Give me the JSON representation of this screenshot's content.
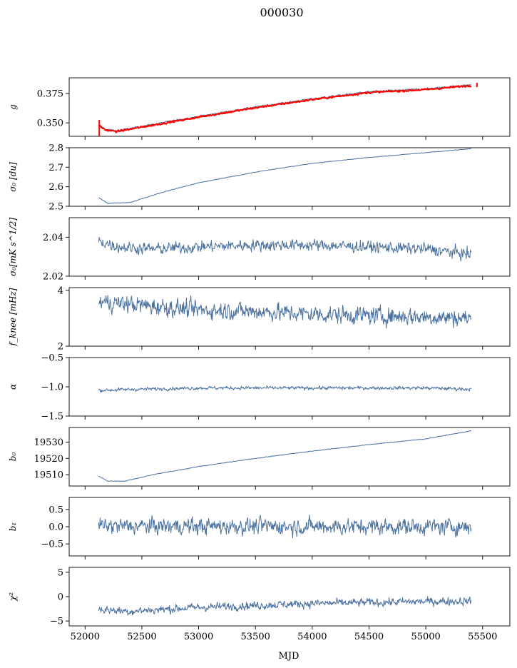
{
  "figure": {
    "title": "000030",
    "xlabel": "MJD"
  },
  "chart_data": {
    "type": "line",
    "title": "000030",
    "xlabel": "MJD",
    "x_ticks": [
      52000,
      52500,
      53000,
      53500,
      54000,
      54500,
      55000,
      55500
    ],
    "xlim": [
      51860,
      55740
    ],
    "panels": [
      {
        "ylabel": "g",
        "ylim": [
          0.3385,
          0.3885
        ],
        "y_ticks": [
          {
            "v": 0.35,
            "label": "0.350"
          },
          {
            "v": 0.375,
            "label": "0.375"
          }
        ],
        "shape": {
          "x": [
            52120,
            52180,
            52280,
            52500,
            53000,
            53500,
            54000,
            54500,
            55000,
            55400
          ],
          "y": [
            0.3485,
            0.3445,
            0.3432,
            0.347,
            0.3555,
            0.3635,
            0.3705,
            0.3765,
            0.379,
            0.3825
          ]
        },
        "noise": 0.0008,
        "series": [
          {
            "color": "#4c72a0",
            "width": 1.0,
            "offset": 0.0
          },
          {
            "color": "#ff0000",
            "width": 2.0,
            "offset": -0.0006,
            "spike_start": true,
            "spike_end": true
          }
        ]
      },
      {
        "ylabel": "σ₀ [du]",
        "ylim": [
          2.5,
          2.8
        ],
        "y_ticks": [
          {
            "v": 2.5,
            "label": "2.5"
          },
          {
            "v": 2.6,
            "label": "2.6"
          },
          {
            "v": 2.7,
            "label": "2.7"
          },
          {
            "v": 2.8,
            "label": "2.8"
          }
        ],
        "shape": {
          "x": [
            52120,
            52200,
            52400,
            52700,
            53000,
            53500,
            54000,
            54500,
            55000,
            55400
          ],
          "y": [
            2.545,
            2.515,
            2.52,
            2.575,
            2.62,
            2.675,
            2.72,
            2.75,
            2.775,
            2.795
          ]
        },
        "noise": 0.0015,
        "series": [
          {
            "color": "#4c72a0",
            "width": 1.0,
            "offset": 0.0
          }
        ]
      },
      {
        "ylabel": "σ₀[mK s^1/2]",
        "ylim": [
          2.02,
          2.05
        ],
        "y_ticks": [
          {
            "v": 2.02,
            "label": "2.02"
          },
          {
            "v": 2.04,
            "label": "2.04"
          }
        ],
        "shape": {
          "x": [
            52120,
            52300,
            52600,
            53000,
            53500,
            54000,
            54500,
            55000,
            55400
          ],
          "y": [
            2.038,
            2.035,
            2.034,
            2.035,
            2.036,
            2.036,
            2.035,
            2.034,
            2.031
          ]
        },
        "noise": 0.003,
        "series": [
          {
            "color": "#4c72a0",
            "width": 1.0,
            "offset": 0.0
          }
        ]
      },
      {
        "ylabel": "f_knee [mHz]",
        "ylim": [
          2.0,
          4.1
        ],
        "y_ticks": [
          {
            "v": 2,
            "label": "2"
          },
          {
            "v": 4,
            "label": "4"
          }
        ],
        "shape": {
          "x": [
            52120,
            52400,
            53000,
            53500,
            54000,
            54500,
            55000,
            55400
          ],
          "y": [
            3.6,
            3.5,
            3.3,
            3.25,
            3.15,
            3.1,
            3.05,
            3.0
          ]
        },
        "noise": 0.32,
        "series": [
          {
            "color": "#4c72a0",
            "width": 1.0,
            "offset": 0.0
          }
        ]
      },
      {
        "ylabel": "α",
        "ylim": [
          -1.5,
          -0.5
        ],
        "y_ticks": [
          {
            "v": -1.5,
            "label": "−1.5"
          },
          {
            "v": -1.0,
            "label": "−1.0"
          },
          {
            "v": -0.5,
            "label": "−0.5"
          }
        ],
        "shape": {
          "x": [
            52120,
            52500,
            53000,
            54000,
            55000,
            55400
          ],
          "y": [
            -1.06,
            -1.04,
            -1.02,
            -1.02,
            -1.02,
            -1.04
          ]
        },
        "noise": 0.03,
        "series": [
          {
            "color": "#4c72a0",
            "width": 1.0,
            "offset": 0.0
          }
        ]
      },
      {
        "ylabel": "b₀",
        "ylim": [
          19503,
          19539
        ],
        "y_ticks": [
          {
            "v": 19510,
            "label": "19510"
          },
          {
            "v": 19520,
            "label": "19520"
          },
          {
            "v": 19530,
            "label": "19530"
          }
        ],
        "shape": {
          "x": [
            52120,
            52200,
            52350,
            52600,
            53000,
            53500,
            54000,
            54500,
            55000,
            55400
          ],
          "y": [
            19509,
            19506,
            19506,
            19510,
            19515,
            19520,
            19524.5,
            19528.5,
            19532,
            19537
          ]
        },
        "noise": 0.2,
        "series": [
          {
            "color": "#4c72a0",
            "width": 1.0,
            "offset": 0.0
          }
        ]
      },
      {
        "ylabel": "b₁",
        "ylim": [
          -0.85,
          0.85
        ],
        "y_ticks": [
          {
            "v": -0.5,
            "label": "−0.5"
          },
          {
            "v": 0.0,
            "label": "0.0"
          },
          {
            "v": 0.5,
            "label": "0.5"
          }
        ],
        "shape": {
          "x": [
            52120,
            55400
          ],
          "y": [
            0.02,
            0.0
          ]
        },
        "noise": 0.24,
        "series": [
          {
            "color": "#4c72a0",
            "width": 1.0,
            "offset": 0.0
          }
        ]
      },
      {
        "ylabel": "χ²",
        "ylim": [
          -6,
          6
        ],
        "y_ticks": [
          {
            "v": -5,
            "label": "−5"
          },
          {
            "v": 0,
            "label": "0"
          },
          {
            "v": 5,
            "label": "5"
          }
        ],
        "shape": {
          "x": [
            52120,
            52400,
            53000,
            53500,
            54000,
            54500,
            55000,
            55400
          ],
          "y": [
            -2.6,
            -3.0,
            -2.2,
            -1.8,
            -1.4,
            -1.2,
            -1.0,
            -0.9
          ]
        },
        "noise": 0.85,
        "series": [
          {
            "color": "#4c72a0",
            "width": 1.0,
            "offset": 0.0
          }
        ]
      }
    ]
  }
}
